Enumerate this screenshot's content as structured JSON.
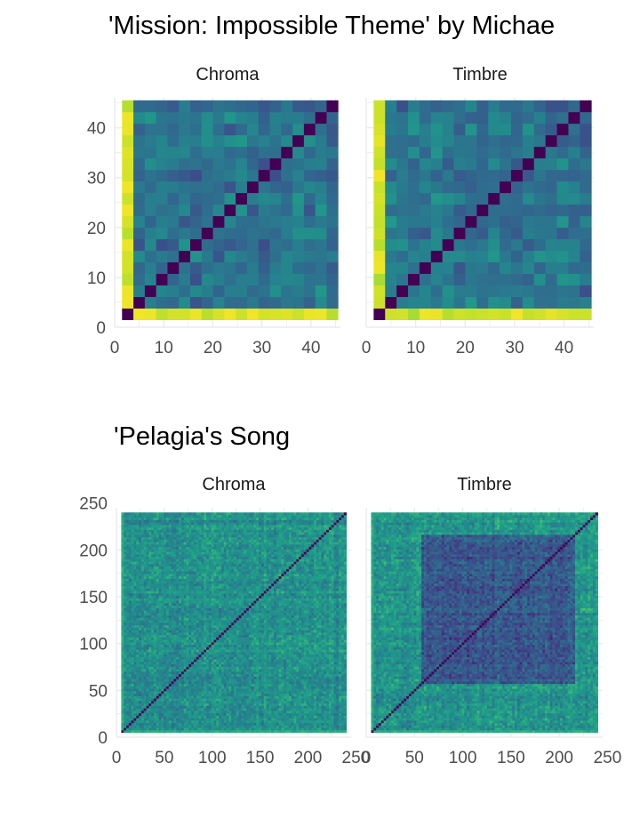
{
  "chart_data": [
    {
      "type": "heatmap",
      "title": "'Mission: Impossible Theme' by Michae",
      "panels": [
        "Chroma",
        "Timbre"
      ],
      "xlim": [
        0,
        46
      ],
      "ylim": [
        0,
        46
      ],
      "x_ticks": [
        0,
        10,
        20,
        30,
        40
      ],
      "y_ticks": [
        0,
        10,
        20,
        30,
        40
      ],
      "n_segments": 19,
      "grid": true,
      "colormap": "viridis"
    },
    {
      "type": "heatmap",
      "title": "'Pelagia's Song",
      "panels": [
        "Chroma",
        "Timbre"
      ],
      "xlim": [
        0,
        245
      ],
      "ylim": [
        0,
        245
      ],
      "x_ticks": [
        0,
        50,
        100,
        150,
        200,
        250
      ],
      "y_ticks": [
        0,
        50,
        100,
        150,
        200,
        250
      ],
      "n_segments": 90,
      "grid": true,
      "colormap": "viridis"
    }
  ]
}
